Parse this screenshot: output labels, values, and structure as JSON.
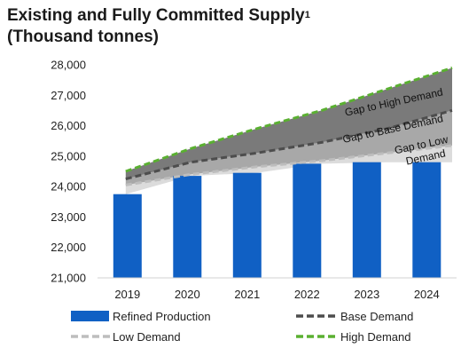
{
  "title_line1": "Existing and Fully Committed Supply",
  "title_superscript": "1",
  "title_line2": "(Thousand tonnes)",
  "chart_data": {
    "type": "bar",
    "categories": [
      "2019",
      "2020",
      "2021",
      "2022",
      "2023",
      "2024"
    ],
    "ylim": [
      21000,
      28000
    ],
    "yticks": [
      21000,
      22000,
      23000,
      24000,
      25000,
      26000,
      27000,
      28000
    ],
    "ytick_labels": [
      "21,000",
      "22,000",
      "23,000",
      "24,000",
      "25,000",
      "26,000",
      "27,000",
      "28,000"
    ],
    "series": [
      {
        "name": "Refined Production",
        "type": "bar",
        "values": [
          23750,
          24350,
          24450,
          24750,
          24800,
          24800
        ]
      },
      {
        "name": "Base Demand",
        "type": "line",
        "values": [
          24250,
          24800,
          25100,
          25450,
          25900,
          26500
        ]
      },
      {
        "name": "Low Demand",
        "type": "line",
        "values": [
          24050,
          24400,
          24650,
          24850,
          25100,
          25350
        ]
      },
      {
        "name": "High Demand",
        "type": "line",
        "values": [
          24500,
          25250,
          25900,
          26500,
          27200,
          27900
        ]
      }
    ],
    "bands": [
      {
        "label": "Gap to High Demand"
      },
      {
        "label": "Gap to Base Demand"
      },
      {
        "label_line1": "Gap to Low",
        "label_line2": "Demand"
      }
    ],
    "colors": {
      "bar": "#1060c4",
      "base_demand": "#4d4d4d",
      "low_demand": "#bdbdbd",
      "high_demand": "#5ab031",
      "gap_high": "#7a7a7a",
      "gap_base": "#a8a8a8",
      "gap_low": "#dcdcdc"
    },
    "legend_position": "bottom"
  }
}
